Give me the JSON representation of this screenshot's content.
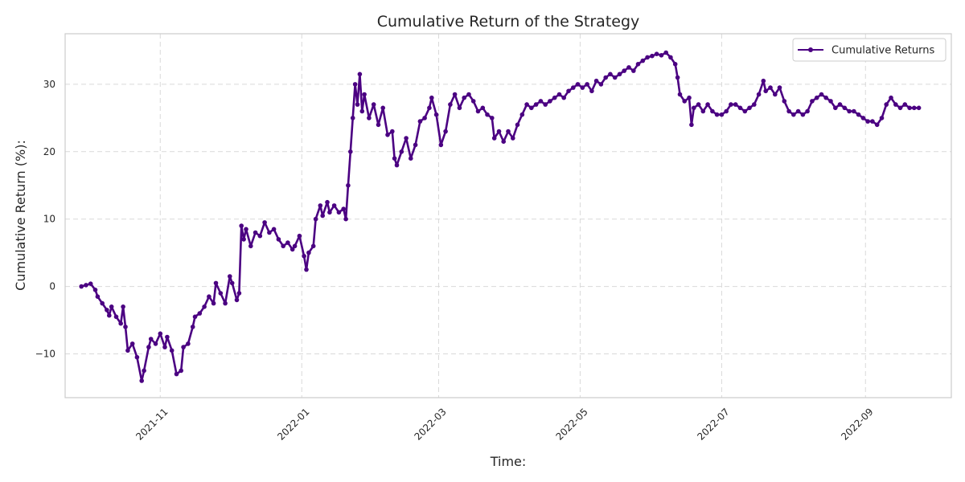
{
  "chart_data": {
    "type": "line",
    "title": "Cumulative Return of the Strategy",
    "xlabel": "Time:",
    "ylabel": "Cumulative Return (%):",
    "xlim": [
      "2021-09-21",
      "2022-10-08"
    ],
    "ylim": [
      -16.5,
      37.5
    ],
    "x_ticks": [
      "2021-11",
      "2022-01",
      "2022-03",
      "2022-05",
      "2022-07",
      "2022-09"
    ],
    "y_ticks": [
      -10,
      0,
      10,
      20,
      30
    ],
    "y_tick_labels": [
      "−10",
      "0",
      "10",
      "20",
      "30"
    ],
    "grid": true,
    "legend": "top-right",
    "colors": {
      "series": "#4b0082",
      "grid": "#d9d9d9",
      "spine": "#cccccc"
    },
    "series": [
      {
        "name": "Cumulative Returns",
        "marker": "circle",
        "points": [
          [
            "2021-09-28",
            0.0
          ],
          [
            "2021-09-30",
            0.2
          ],
          [
            "2021-10-02",
            0.4
          ],
          [
            "2021-10-04",
            -0.5
          ],
          [
            "2021-10-05",
            -1.5
          ],
          [
            "2021-10-07",
            -2.5
          ],
          [
            "2021-10-09",
            -3.5
          ],
          [
            "2021-10-10",
            -4.3
          ],
          [
            "2021-10-11",
            -3.0
          ],
          [
            "2021-10-13",
            -4.5
          ],
          [
            "2021-10-15",
            -5.5
          ],
          [
            "2021-10-16",
            -3.0
          ],
          [
            "2021-10-17",
            -6.0
          ],
          [
            "2021-10-18",
            -9.5
          ],
          [
            "2021-10-20",
            -8.5
          ],
          [
            "2021-10-22",
            -10.5
          ],
          [
            "2021-10-24",
            -14.0
          ],
          [
            "2021-10-25",
            -12.5
          ],
          [
            "2021-10-27",
            -9.0
          ],
          [
            "2021-10-28",
            -7.8
          ],
          [
            "2021-10-30",
            -8.5
          ],
          [
            "2021-11-01",
            -7.0
          ],
          [
            "2021-11-03",
            -9.0
          ],
          [
            "2021-11-04",
            -7.5
          ],
          [
            "2021-11-06",
            -9.5
          ],
          [
            "2021-11-08",
            -13.0
          ],
          [
            "2021-11-10",
            -12.5
          ],
          [
            "2021-11-11",
            -9.0
          ],
          [
            "2021-11-13",
            -8.5
          ],
          [
            "2021-11-15",
            -6.0
          ],
          [
            "2021-11-16",
            -4.5
          ],
          [
            "2021-11-18",
            -4.0
          ],
          [
            "2021-11-20",
            -3.0
          ],
          [
            "2021-11-22",
            -1.5
          ],
          [
            "2021-11-24",
            -2.5
          ],
          [
            "2021-11-25",
            0.5
          ],
          [
            "2021-11-27",
            -1.0
          ],
          [
            "2021-11-29",
            -2.5
          ],
          [
            "2021-12-01",
            1.5
          ],
          [
            "2021-12-02",
            0.5
          ],
          [
            "2021-12-04",
            -2.0
          ],
          [
            "2021-12-05",
            -1.0
          ],
          [
            "2021-12-06",
            9.0
          ],
          [
            "2021-12-07",
            7.0
          ],
          [
            "2021-12-08",
            8.5
          ],
          [
            "2021-12-10",
            6.0
          ],
          [
            "2021-12-12",
            8.0
          ],
          [
            "2021-12-14",
            7.5
          ],
          [
            "2021-12-16",
            9.5
          ],
          [
            "2021-12-18",
            8.0
          ],
          [
            "2021-12-20",
            8.5
          ],
          [
            "2021-12-22",
            7.0
          ],
          [
            "2021-12-24",
            6.0
          ],
          [
            "2021-12-26",
            6.5
          ],
          [
            "2021-12-28",
            5.5
          ],
          [
            "2021-12-29",
            6.0
          ],
          [
            "2021-12-31",
            7.5
          ],
          [
            "2022-01-02",
            4.5
          ],
          [
            "2022-01-03",
            2.5
          ],
          [
            "2022-01-04",
            5.0
          ],
          [
            "2022-01-06",
            6.0
          ],
          [
            "2022-01-07",
            10.0
          ],
          [
            "2022-01-09",
            12.0
          ],
          [
            "2022-01-10",
            10.5
          ],
          [
            "2022-01-12",
            12.5
          ],
          [
            "2022-01-13",
            11.0
          ],
          [
            "2022-01-15",
            12.0
          ],
          [
            "2022-01-17",
            11.0
          ],
          [
            "2022-01-19",
            11.5
          ],
          [
            "2022-01-20",
            10.0
          ],
          [
            "2022-01-21",
            15.0
          ],
          [
            "2022-01-22",
            20.0
          ],
          [
            "2022-01-23",
            25.0
          ],
          [
            "2022-01-24",
            30.0
          ],
          [
            "2022-01-25",
            27.0
          ],
          [
            "2022-01-26",
            31.5
          ],
          [
            "2022-01-27",
            26.0
          ],
          [
            "2022-01-28",
            28.5
          ],
          [
            "2022-01-30",
            25.0
          ],
          [
            "2022-02-01",
            27.0
          ],
          [
            "2022-02-03",
            24.0
          ],
          [
            "2022-02-05",
            26.5
          ],
          [
            "2022-02-07",
            22.5
          ],
          [
            "2022-02-09",
            23.0
          ],
          [
            "2022-02-10",
            19.0
          ],
          [
            "2022-02-11",
            18.0
          ],
          [
            "2022-02-13",
            20.0
          ],
          [
            "2022-02-15",
            22.0
          ],
          [
            "2022-02-17",
            19.0
          ],
          [
            "2022-02-19",
            21.0
          ],
          [
            "2022-02-21",
            24.5
          ],
          [
            "2022-02-23",
            25.0
          ],
          [
            "2022-02-25",
            26.5
          ],
          [
            "2022-02-26",
            28.0
          ],
          [
            "2022-02-28",
            25.5
          ],
          [
            "2022-03-02",
            21.0
          ],
          [
            "2022-03-04",
            23.0
          ],
          [
            "2022-03-06",
            27.0
          ],
          [
            "2022-03-08",
            28.5
          ],
          [
            "2022-03-10",
            26.5
          ],
          [
            "2022-03-12",
            28.0
          ],
          [
            "2022-03-14",
            28.5
          ],
          [
            "2022-03-16",
            27.5
          ],
          [
            "2022-03-18",
            26.0
          ],
          [
            "2022-03-20",
            26.5
          ],
          [
            "2022-03-22",
            25.5
          ],
          [
            "2022-03-24",
            25.0
          ],
          [
            "2022-03-25",
            22.0
          ],
          [
            "2022-03-27",
            23.0
          ],
          [
            "2022-03-29",
            21.5
          ],
          [
            "2022-03-31",
            23.0
          ],
          [
            "2022-04-02",
            22.0
          ],
          [
            "2022-04-04",
            24.0
          ],
          [
            "2022-04-06",
            25.5
          ],
          [
            "2022-04-08",
            27.0
          ],
          [
            "2022-04-10",
            26.5
          ],
          [
            "2022-04-12",
            27.0
          ],
          [
            "2022-04-14",
            27.5
          ],
          [
            "2022-04-16",
            27.0
          ],
          [
            "2022-04-18",
            27.5
          ],
          [
            "2022-04-20",
            28.0
          ],
          [
            "2022-04-22",
            28.5
          ],
          [
            "2022-04-24",
            28.0
          ],
          [
            "2022-04-26",
            29.0
          ],
          [
            "2022-04-28",
            29.5
          ],
          [
            "2022-04-30",
            30.0
          ],
          [
            "2022-05-02",
            29.5
          ],
          [
            "2022-05-04",
            30.0
          ],
          [
            "2022-05-06",
            29.0
          ],
          [
            "2022-05-08",
            30.5
          ],
          [
            "2022-05-10",
            30.0
          ],
          [
            "2022-05-12",
            31.0
          ],
          [
            "2022-05-14",
            31.5
          ],
          [
            "2022-05-16",
            31.0
          ],
          [
            "2022-05-18",
            31.5
          ],
          [
            "2022-05-20",
            32.0
          ],
          [
            "2022-05-22",
            32.5
          ],
          [
            "2022-05-24",
            32.0
          ],
          [
            "2022-05-26",
            33.0
          ],
          [
            "2022-05-28",
            33.5
          ],
          [
            "2022-05-30",
            34.0
          ],
          [
            "2022-06-01",
            34.2
          ],
          [
            "2022-06-03",
            34.5
          ],
          [
            "2022-06-05",
            34.3
          ],
          [
            "2022-06-07",
            34.7
          ],
          [
            "2022-06-09",
            34.0
          ],
          [
            "2022-06-11",
            33.0
          ],
          [
            "2022-06-12",
            31.0
          ],
          [
            "2022-06-13",
            28.5
          ],
          [
            "2022-06-15",
            27.5
          ],
          [
            "2022-06-17",
            28.0
          ],
          [
            "2022-06-18",
            24.0
          ],
          [
            "2022-06-19",
            26.5
          ],
          [
            "2022-06-21",
            27.0
          ],
          [
            "2022-06-23",
            26.0
          ],
          [
            "2022-06-25",
            27.0
          ],
          [
            "2022-06-27",
            26.0
          ],
          [
            "2022-06-29",
            25.5
          ],
          [
            "2022-07-01",
            25.5
          ],
          [
            "2022-07-03",
            26.0
          ],
          [
            "2022-07-05",
            27.0
          ],
          [
            "2022-07-07",
            27.0
          ],
          [
            "2022-07-09",
            26.5
          ],
          [
            "2022-07-11",
            26.0
          ],
          [
            "2022-07-13",
            26.5
          ],
          [
            "2022-07-15",
            27.0
          ],
          [
            "2022-07-17",
            28.5
          ],
          [
            "2022-07-19",
            30.5
          ],
          [
            "2022-07-20",
            29.0
          ],
          [
            "2022-07-22",
            29.5
          ],
          [
            "2022-07-24",
            28.5
          ],
          [
            "2022-07-26",
            29.5
          ],
          [
            "2022-07-28",
            27.5
          ],
          [
            "2022-07-30",
            26.0
          ],
          [
            "2022-08-01",
            25.5
          ],
          [
            "2022-08-03",
            26.0
          ],
          [
            "2022-08-05",
            25.5
          ],
          [
            "2022-08-07",
            26.0
          ],
          [
            "2022-08-09",
            27.5
          ],
          [
            "2022-08-11",
            28.0
          ],
          [
            "2022-08-13",
            28.5
          ],
          [
            "2022-08-15",
            28.0
          ],
          [
            "2022-08-17",
            27.5
          ],
          [
            "2022-08-19",
            26.5
          ],
          [
            "2022-08-21",
            27.0
          ],
          [
            "2022-08-23",
            26.5
          ],
          [
            "2022-08-25",
            26.0
          ],
          [
            "2022-08-27",
            26.0
          ],
          [
            "2022-08-29",
            25.5
          ],
          [
            "2022-08-31",
            25.0
          ],
          [
            "2022-09-02",
            24.5
          ],
          [
            "2022-09-04",
            24.5
          ],
          [
            "2022-09-06",
            24.0
          ],
          [
            "2022-09-08",
            25.0
          ],
          [
            "2022-09-10",
            27.0
          ],
          [
            "2022-09-12",
            28.0
          ],
          [
            "2022-09-14",
            27.0
          ],
          [
            "2022-09-16",
            26.5
          ],
          [
            "2022-09-18",
            27.0
          ],
          [
            "2022-09-20",
            26.5
          ],
          [
            "2022-09-22",
            26.5
          ],
          [
            "2022-09-24",
            26.5
          ]
        ]
      }
    ]
  }
}
